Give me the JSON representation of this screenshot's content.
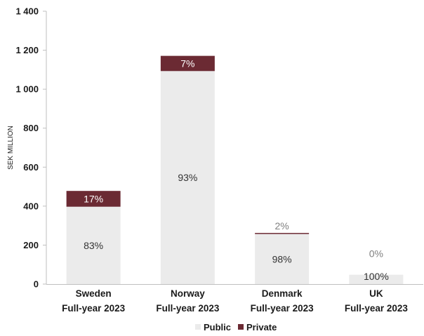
{
  "chart_data": {
    "type": "bar",
    "stacked": true,
    "ylabel": "SEK MILLION",
    "xlabel": "",
    "title": "",
    "ylim": [
      0,
      1400
    ],
    "y_ticks": [
      0,
      200,
      400,
      600,
      800,
      1000,
      1200,
      1400
    ],
    "y_tick_labels": [
      "0",
      "200",
      "400",
      "600",
      "800",
      "1 000",
      "1 200",
      "1 400"
    ],
    "categories": [
      [
        "Sweden",
        "Full-year 2023"
      ],
      [
        "Norway",
        "Full-year 2023"
      ],
      [
        "Denmark",
        "Full-year 2023"
      ],
      [
        "UK",
        "Full-year 2023"
      ]
    ],
    "series": [
      {
        "name": "Public",
        "color": "#ebebeb",
        "values": [
          397,
          1093,
          257,
          48
        ],
        "data_labels": [
          "83%",
          "93%",
          "98%",
          "100%"
        ]
      },
      {
        "name": "Private",
        "color": "#6b2a33",
        "values": [
          81,
          78,
          5,
          0
        ],
        "data_labels": [
          "17%",
          "7%",
          "2%",
          "0%"
        ]
      }
    ],
    "grid": false,
    "legend_position": "bottom-center"
  }
}
